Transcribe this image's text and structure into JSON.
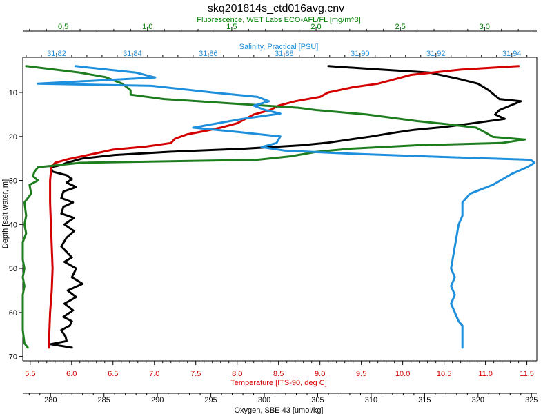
{
  "chart_data": {
    "type": "line",
    "title": "skq201814s_ctd016avg.cnv",
    "y_axis": {
      "label": "Depth [salt water, m]",
      "ticks": [
        10,
        20,
        30,
        40,
        50,
        60,
        70
      ],
      "range": [
        2,
        71
      ],
      "inverted": true
    },
    "x_axes": [
      {
        "id": "fluorescence",
        "label": "Fluorescence, WET Labs ECO-AFL/FL [mg/m^3]",
        "position": "top-outer",
        "color": "#008000",
        "range": [
          0.26,
          3.31
        ],
        "ticks": [
          "0.5",
          "1.0",
          "1.5",
          "2.0",
          "2.5",
          "3.0"
        ]
      },
      {
        "id": "salinity",
        "label": "Salinity, Practical [PSU]",
        "position": "top-inner",
        "color": "#1e8fdc",
        "range": [
          31.8111,
          31.9466
        ],
        "ticks": [
          "31.82",
          "31.84",
          "31.86",
          "31.88",
          "31.90",
          "31.92",
          "31.94"
        ]
      },
      {
        "id": "temperature",
        "label": "Temperature [ITS-90, deg C]",
        "position": "bottom-inner",
        "color": "#d40000",
        "range": [
          5.41,
          11.62
        ],
        "ticks": [
          "5.5",
          "6.0",
          "6.5",
          "7.0",
          "7.5",
          "8.0",
          "8.5",
          "9.0",
          "9.5",
          "10.0",
          "10.5",
          "11.0",
          "11.5"
        ]
      },
      {
        "id": "oxygen",
        "label": "Oxygen, SBE 43 [umol/kg]",
        "position": "bottom-outer",
        "color": "#000000",
        "range": [
          277.4,
          325.5
        ],
        "ticks": [
          "280",
          "285",
          "290",
          "295",
          "300",
          "305",
          "310",
          "315",
          "320",
          "325"
        ]
      }
    ],
    "series": [
      {
        "axis": "oxygen",
        "color": "#000000",
        "points": [
          [
            306,
            4
          ],
          [
            311,
            4.8
          ],
          [
            315.5,
            5.5
          ],
          [
            318,
            6.8
          ],
          [
            320,
            8
          ],
          [
            321,
            9.5
          ],
          [
            322,
            11.5
          ],
          [
            324,
            12
          ],
          [
            323,
            13
          ],
          [
            322,
            14
          ],
          [
            321.6,
            15
          ],
          [
            322.5,
            16
          ],
          [
            319.5,
            17
          ],
          [
            317,
            17.8
          ],
          [
            314,
            18.5
          ],
          [
            312,
            19.2
          ],
          [
            310,
            20
          ],
          [
            308,
            20.7
          ],
          [
            306,
            21.4
          ],
          [
            303.5,
            22
          ],
          [
            298,
            22.8
          ],
          [
            291,
            23.5
          ],
          [
            286,
            24.2
          ],
          [
            283,
            25
          ],
          [
            281.5,
            26
          ],
          [
            281,
            26.5
          ],
          [
            280,
            27
          ],
          [
            280.2,
            28
          ],
          [
            281.5,
            28.8
          ],
          [
            282,
            29.7
          ],
          [
            281.5,
            30.5
          ],
          [
            282.4,
            31.5
          ],
          [
            281.2,
            32.5
          ],
          [
            281,
            34
          ],
          [
            282.1,
            35
          ],
          [
            281.2,
            36
          ],
          [
            281,
            37.5
          ],
          [
            282.2,
            38.5
          ],
          [
            281.3,
            40
          ],
          [
            282.2,
            41.5
          ],
          [
            281.5,
            43
          ],
          [
            281,
            45
          ],
          [
            282,
            47.5
          ],
          [
            281.3,
            48.5
          ],
          [
            282.4,
            50
          ],
          [
            282,
            52
          ],
          [
            283,
            53.5
          ],
          [
            281.6,
            55
          ],
          [
            282.4,
            56.5
          ],
          [
            281.3,
            58
          ],
          [
            282.1,
            59.5
          ],
          [
            281.2,
            61
          ],
          [
            282,
            62
          ],
          [
            281.8,
            63
          ],
          [
            281,
            64
          ],
          [
            281.4,
            65.5
          ],
          [
            281.5,
            66.5
          ],
          [
            280,
            67.2
          ],
          [
            282,
            68
          ]
        ]
      },
      {
        "axis": "temperature",
        "color": "#d40000",
        "points": [
          [
            11.4,
            4
          ],
          [
            10.7,
            4.8
          ],
          [
            10.1,
            6
          ],
          [
            9.9,
            7
          ],
          [
            9.7,
            8
          ],
          [
            9.4,
            8.8
          ],
          [
            9.1,
            10
          ],
          [
            9.0,
            11
          ],
          [
            8.7,
            12
          ],
          [
            8.5,
            13
          ],
          [
            8.4,
            14
          ],
          [
            8.2,
            15
          ],
          [
            8.0,
            17
          ],
          [
            7.8,
            18
          ],
          [
            7.6,
            18.8
          ],
          [
            7.4,
            19.5
          ],
          [
            7.25,
            20.5
          ],
          [
            7.2,
            21.5
          ],
          [
            6.9,
            22.3
          ],
          [
            6.5,
            23
          ],
          [
            6.2,
            24.2
          ],
          [
            5.95,
            25.2
          ],
          [
            5.8,
            26
          ],
          [
            5.75,
            27
          ],
          [
            5.75,
            28
          ],
          [
            5.74,
            30
          ],
          [
            5.74,
            35
          ],
          [
            5.75,
            40
          ],
          [
            5.76,
            45
          ],
          [
            5.77,
            50
          ],
          [
            5.76,
            55
          ],
          [
            5.74,
            60
          ],
          [
            5.73,
            65
          ],
          [
            5.73,
            68
          ]
        ]
      },
      {
        "axis": "fluorescence",
        "color": "#1e7d1e",
        "points": [
          [
            0.28,
            4
          ],
          [
            0.6,
            5.5
          ],
          [
            0.75,
            6.5
          ],
          [
            0.85,
            8
          ],
          [
            0.9,
            9.5
          ],
          [
            0.9,
            10.5
          ],
          [
            1.1,
            11.5
          ],
          [
            1.3,
            12
          ],
          [
            1.5,
            12.5
          ],
          [
            1.7,
            13
          ],
          [
            1.9,
            13.5
          ],
          [
            2.0,
            14
          ],
          [
            2.3,
            15
          ],
          [
            2.6,
            16.5
          ],
          [
            2.8,
            17.3
          ],
          [
            2.95,
            18
          ],
          [
            3.0,
            19
          ],
          [
            3.05,
            20.1
          ],
          [
            3.24,
            20.7
          ],
          [
            3.1,
            21.5
          ],
          [
            2.6,
            22
          ],
          [
            2.2,
            22.8
          ],
          [
            2.0,
            23.5
          ],
          [
            1.85,
            24.5
          ],
          [
            1.65,
            25.3
          ],
          [
            0.6,
            26
          ],
          [
            0.35,
            27
          ],
          [
            0.33,
            28
          ],
          [
            0.32,
            29
          ],
          [
            0.35,
            30
          ],
          [
            0.3,
            31
          ],
          [
            0.31,
            33
          ],
          [
            0.27,
            35
          ],
          [
            0.28,
            38
          ],
          [
            0.27,
            40
          ],
          [
            0.28,
            42
          ],
          [
            0.26,
            44
          ],
          [
            0.26,
            46
          ],
          [
            0.26,
            48
          ],
          [
            0.27,
            50
          ],
          [
            0.26,
            52
          ],
          [
            0.27,
            54
          ],
          [
            0.26,
            56
          ],
          [
            0.26,
            60
          ],
          [
            0.26,
            64
          ],
          [
            0.27,
            67
          ],
          [
            0.29,
            68
          ]
        ]
      },
      {
        "axis": "salinity",
        "color": "#1e8fdc",
        "points": [
          [
            31.825,
            4
          ],
          [
            31.841,
            5.5
          ],
          [
            31.846,
            6.6
          ],
          [
            31.815,
            8
          ],
          [
            31.845,
            8.5
          ],
          [
            31.861,
            10
          ],
          [
            31.873,
            11
          ],
          [
            31.876,
            12
          ],
          [
            31.872,
            13
          ],
          [
            31.875,
            14
          ],
          [
            31.879,
            14.8
          ],
          [
            31.869,
            16
          ],
          [
            31.856,
            18
          ],
          [
            31.868,
            19
          ],
          [
            31.879,
            20
          ],
          [
            31.878,
            21.5
          ],
          [
            31.874,
            22.4
          ],
          [
            31.88,
            23.2
          ],
          [
            31.9,
            24
          ],
          [
            31.92,
            24.6
          ],
          [
            31.945,
            25.3
          ],
          [
            31.946,
            26
          ],
          [
            31.944,
            27
          ],
          [
            31.94,
            28.5
          ],
          [
            31.935,
            31
          ],
          [
            31.929,
            33
          ],
          [
            31.927,
            35
          ],
          [
            31.927,
            38
          ],
          [
            31.926,
            40
          ],
          [
            31.925,
            45
          ],
          [
            31.924,
            50
          ],
          [
            31.925,
            52
          ],
          [
            31.924,
            54
          ],
          [
            31.925,
            56
          ],
          [
            31.924,
            58
          ],
          [
            31.925,
            60
          ],
          [
            31.926,
            62
          ],
          [
            31.927,
            63
          ],
          [
            31.927,
            66
          ],
          [
            31.927,
            68
          ]
        ]
      }
    ],
    "grid": false,
    "legend": "none"
  }
}
